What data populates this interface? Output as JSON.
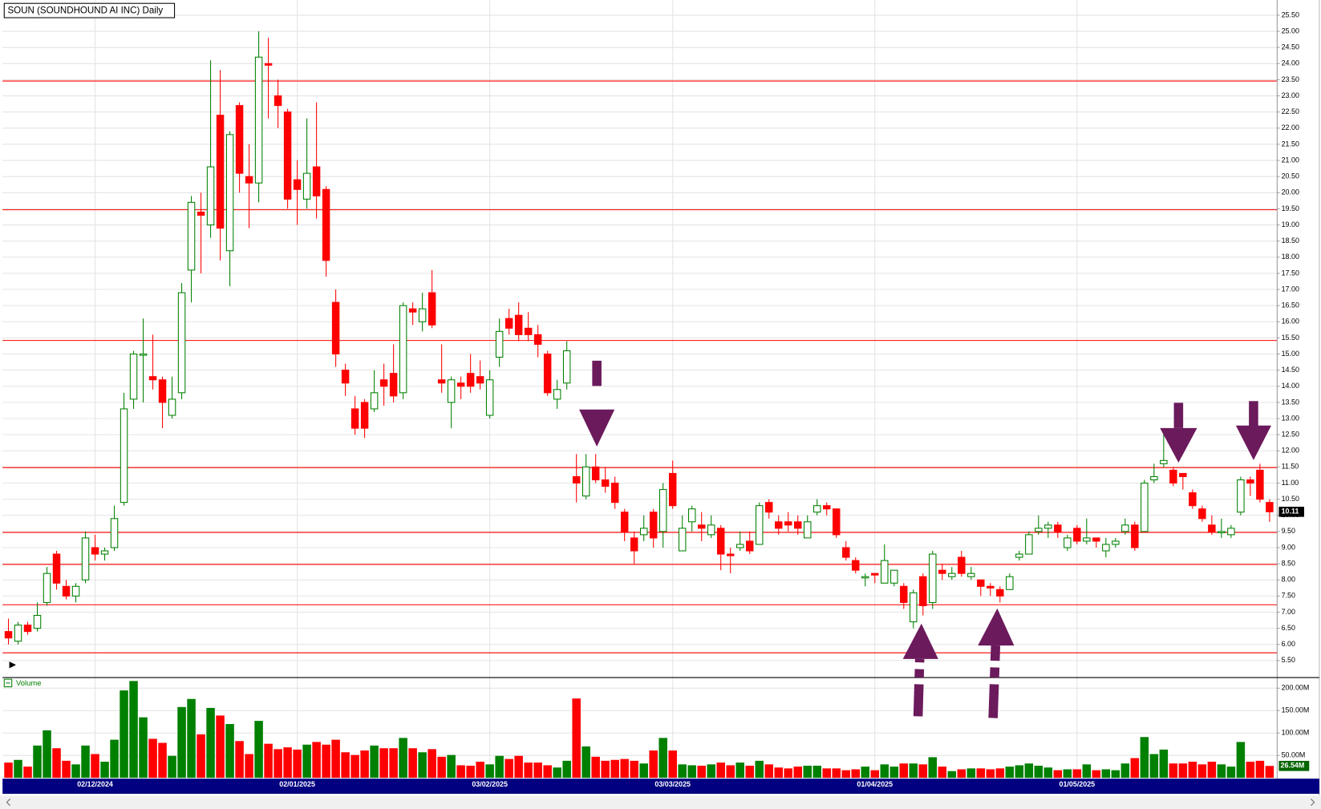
{
  "chart_data": {
    "type": "candlestick",
    "title": "SOUN (SOUNDHOUND AI INC) Daily",
    "volume_label": "Volume",
    "up_color": "#008000",
    "down_color": "#ff0000",
    "hline_color": "#ff0000",
    "grid": true,
    "categories": [
      null,
      null,
      null,
      null,
      null,
      null,
      null,
      null,
      null,
      "02/12/2024",
      null,
      null,
      null,
      null,
      null,
      null,
      null,
      null,
      null,
      null,
      null,
      null,
      null,
      null,
      null,
      null,
      null,
      null,
      null,
      null,
      "02/01/2025",
      null,
      null,
      null,
      null,
      null,
      null,
      null,
      null,
      null,
      null,
      null,
      null,
      null,
      null,
      null,
      null,
      null,
      null,
      null,
      "03/02/2025",
      null,
      null,
      null,
      null,
      null,
      null,
      null,
      null,
      null,
      null,
      null,
      null,
      null,
      null,
      null,
      null,
      null,
      null,
      "03/03/2025",
      null,
      null,
      null,
      null,
      null,
      null,
      null,
      null,
      null,
      null,
      null,
      null,
      null,
      null,
      null,
      null,
      null,
      null,
      null,
      null,
      "01/04/2025",
      null,
      null,
      null,
      null,
      null,
      null,
      null,
      null,
      null,
      null,
      null,
      null,
      null,
      null,
      null,
      null,
      null,
      null,
      null,
      null,
      "01/05/2025",
      null,
      null,
      null,
      null,
      null,
      null,
      null,
      null,
      null,
      null,
      null,
      null,
      null,
      null,
      null,
      null,
      null,
      null,
      null,
      null
    ],
    "open": [
      6.4,
      6.1,
      6.6,
      6.5,
      7.3,
      8.8,
      7.8,
      7.5,
      8.0,
      9.0,
      8.8,
      9.0,
      10.4,
      13.6,
      15.0,
      14.3,
      14.2,
      13.1,
      13.8,
      17.6,
      19.4,
      19.0,
      22.4,
      18.2,
      22.7,
      20.5,
      20.3,
      24.0,
      23.0,
      22.5,
      20.4,
      19.8,
      20.8,
      20.1,
      16.6,
      14.5,
      13.3,
      13.5,
      13.3,
      14.2,
      14.4,
      13.8,
      16.4,
      16.0,
      16.9,
      14.2,
      13.5,
      14.1,
      14.4,
      14.3,
      13.1,
      14.9,
      16.1,
      16.2,
      15.8,
      15.6,
      15.0,
      13.6,
      14.1,
      11.2,
      10.6,
      11.5,
      11.1,
      11.0,
      10.1,
      9.3,
      9.4,
      10.1,
      9.5,
      11.3,
      8.9,
      9.8,
      9.7,
      9.4,
      9.6,
      8.8,
      9.0,
      9.2,
      9.1,
      10.4,
      9.8,
      9.8,
      9.8,
      9.3,
      10.1,
      10.3,
      10.2,
      9.0,
      8.6,
      8.1,
      8.2,
      7.9,
      7.9,
      7.8,
      6.7,
      8.1,
      7.3,
      8.3,
      8.1,
      8.7,
      8.1,
      8.0,
      7.8,
      7.7,
      7.7,
      8.7,
      8.8,
      9.5,
      9.6,
      9.7,
      9.0,
      9.6,
      9.2,
      9.3,
      8.9,
      9.1,
      9.5,
      9.7,
      9.5,
      11.1,
      11.6,
      11.4,
      11.3,
      10.7,
      10.2,
      9.7,
      9.5,
      9.4,
      10.1,
      11.1,
      11.4,
      10.4
    ],
    "high": [
      6.8,
      6.7,
      6.7,
      7.3,
      8.4,
      8.9,
      8.0,
      7.9,
      9.5,
      9.4,
      9.0,
      10.3,
      13.8,
      15.1,
      16.1,
      15.6,
      14.3,
      14.3,
      17.2,
      19.9,
      20.0,
      24.1,
      23.8,
      21.9,
      22.8,
      21.5,
      25.0,
      24.8,
      23.5,
      22.6,
      21.0,
      22.3,
      22.8,
      20.2,
      17.0,
      14.7,
      13.7,
      13.6,
      14.5,
      14.7,
      15.3,
      16.6,
      16.6,
      16.9,
      17.6,
      15.3,
      14.3,
      14.3,
      15.0,
      14.8,
      14.5,
      16.1,
      16.4,
      16.6,
      16.3,
      15.9,
      15.1,
      14.2,
      15.4,
      11.9,
      11.9,
      11.9,
      11.5,
      11.2,
      10.2,
      9.5,
      10.0,
      10.2,
      11.0,
      11.7,
      10.0,
      10.3,
      10.1,
      10.0,
      9.7,
      9.0,
      9.5,
      9.5,
      10.4,
      10.5,
      10.0,
      10.1,
      10.0,
      10.0,
      10.5,
      10.4,
      10.2,
      9.2,
      8.7,
      8.2,
      8.2,
      9.1,
      8.3,
      7.9,
      7.7,
      8.2,
      8.9,
      8.5,
      8.4,
      8.9,
      8.4,
      8.0,
      7.9,
      7.8,
      8.2,
      8.9,
      9.5,
      10.0,
      9.8,
      9.8,
      9.4,
      9.7,
      9.9,
      9.3,
      9.3,
      9.3,
      9.9,
      9.8,
      11.1,
      11.6,
      12.6,
      11.5,
      11.3,
      10.8,
      10.3,
      10.0,
      9.9,
      9.7,
      11.2,
      11.2,
      11.6,
      10.5
    ],
    "low": [
      6.0,
      6.0,
      6.3,
      6.4,
      7.2,
      7.7,
      7.4,
      7.3,
      7.9,
      8.6,
      8.6,
      8.9,
      10.3,
      13.3,
      13.5,
      13.9,
      12.7,
      13.0,
      13.6,
      16.6,
      17.5,
      18.6,
      17.9,
      17.1,
      20.0,
      18.9,
      19.7,
      22.3,
      22.0,
      19.5,
      19.0,
      19.5,
      19.2,
      17.4,
      14.6,
      13.7,
      12.5,
      12.4,
      13.2,
      13.4,
      13.5,
      13.6,
      15.9,
      15.7,
      15.8,
      13.8,
      12.7,
      13.6,
      13.8,
      13.9,
      13.0,
      14.6,
      15.6,
      15.4,
      15.4,
      14.9,
      13.7,
      13.3,
      13.9,
      10.4,
      10.5,
      11.0,
      10.7,
      10.2,
      9.2,
      8.5,
      9.2,
      9.0,
      9.0,
      10.2,
      8.9,
      9.5,
      9.2,
      9.3,
      8.3,
      8.2,
      8.9,
      8.8,
      9.1,
      9.9,
      9.4,
      9.5,
      9.4,
      9.3,
      10.0,
      10.0,
      9.3,
      8.6,
      8.2,
      7.8,
      7.9,
      7.9,
      7.8,
      7.1,
      6.5,
      6.9,
      7.1,
      8.0,
      8.0,
      8.1,
      8.0,
      7.5,
      7.5,
      7.3,
      7.7,
      8.6,
      8.8,
      9.4,
      9.3,
      9.3,
      8.9,
      9.1,
      9.1,
      9.0,
      8.7,
      9.0,
      9.4,
      8.9,
      9.5,
      11.0,
      11.5,
      10.9,
      10.8,
      10.2,
      9.8,
      9.4,
      9.3,
      9.3,
      10.0,
      10.6,
      10.4,
      9.8
    ],
    "close": [
      6.2,
      6.6,
      6.4,
      6.9,
      8.2,
      7.9,
      7.5,
      7.8,
      9.3,
      8.8,
      8.9,
      9.9,
      13.3,
      15.0,
      15.0,
      14.2,
      13.5,
      13.6,
      16.9,
      19.7,
      19.3,
      20.8,
      18.9,
      21.8,
      20.6,
      20.3,
      24.2,
      23.95,
      22.7,
      19.8,
      20.1,
      20.6,
      19.9,
      17.9,
      15.0,
      14.1,
      12.7,
      12.7,
      13.8,
      14.0,
      13.7,
      16.5,
      16.3,
      16.4,
      15.9,
      14.1,
      14.2,
      14.0,
      14.0,
      14.1,
      14.2,
      15.7,
      15.8,
      15.6,
      15.6,
      15.3,
      13.8,
      13.9,
      15.1,
      11.0,
      11.5,
      11.1,
      10.9,
      10.4,
      9.5,
      8.9,
      9.6,
      9.3,
      10.8,
      10.3,
      9.6,
      10.2,
      9.6,
      9.7,
      8.8,
      8.75,
      9.1,
      8.9,
      10.3,
      10.1,
      9.6,
      9.7,
      9.6,
      9.8,
      10.3,
      10.2,
      9.4,
      8.7,
      8.3,
      8.1,
      8.15,
      8.6,
      8.3,
      7.3,
      7.6,
      7.2,
      8.8,
      8.2,
      8.2,
      8.2,
      8.2,
      7.8,
      7.75,
      7.5,
      8.1,
      8.8,
      9.4,
      9.6,
      9.7,
      9.5,
      9.3,
      9.2,
      9.3,
      9.2,
      9.1,
      9.2,
      9.7,
      9.0,
      11.0,
      11.2,
      11.7,
      11.0,
      11.2,
      10.3,
      9.9,
      9.5,
      9.5,
      9.6,
      11.1,
      11.0,
      10.5,
      10.11
    ],
    "volume": [
      34,
      40,
      25,
      72,
      106,
      66,
      38,
      30,
      72,
      53,
      36,
      85,
      195,
      216,
      135,
      87,
      78,
      49,
      158,
      176,
      97,
      156,
      139,
      120,
      82,
      53,
      127,
      76,
      64,
      68,
      63,
      74,
      80,
      74,
      85,
      57,
      51,
      61,
      72,
      66,
      66,
      89,
      66,
      57,
      64,
      47,
      51,
      28,
      27,
      36,
      30,
      49,
      42,
      49,
      34,
      34,
      28,
      23,
      38,
      177,
      70,
      47,
      38,
      40,
      42,
      38,
      32,
      61,
      89,
      61,
      30,
      28,
      27,
      30,
      34,
      28,
      34,
      27,
      38,
      30,
      23,
      21,
      25,
      27,
      27,
      21,
      21,
      17,
      19,
      25,
      17,
      30,
      25,
      32,
      32,
      30,
      46,
      25,
      15,
      19,
      21,
      21,
      19,
      21,
      25,
      28,
      32,
      27,
      23,
      17,
      19,
      19,
      30,
      17,
      19,
      17,
      32,
      44,
      91,
      53,
      63,
      32,
      32,
      36,
      30,
      36,
      30,
      25,
      80,
      36,
      38,
      26.54
    ],
    "hlines": [
      23.46,
      19.47,
      15.42,
      11.48,
      9.47,
      8.48,
      7.23,
      5.74
    ],
    "last_price": 10.11,
    "last_volume": {
      "value": 26.54,
      "label": "26.54M"
    },
    "ylim": [
      5.0,
      25.84
    ],
    "yticks": [
      {
        "value": 5.5,
        "label": "5.50"
      },
      {
        "value": 6,
        "label": "6.00"
      },
      {
        "value": 6.5,
        "label": "6.50"
      },
      {
        "value": 7,
        "label": "7.00"
      },
      {
        "value": 7.5,
        "label": "7.50"
      },
      {
        "value": 8,
        "label": "8.00"
      },
      {
        "value": 8.5,
        "label": "8.50"
      },
      {
        "value": 9,
        "label": "9.00"
      },
      {
        "value": 9.5,
        "label": "9.50"
      },
      {
        "value": 10,
        "label": "10.00"
      },
      {
        "value": 10.5,
        "label": "10.50"
      },
      {
        "value": 11,
        "label": "11.00"
      },
      {
        "value": 11.5,
        "label": "11.50"
      },
      {
        "value": 12,
        "label": "12.00"
      },
      {
        "value": 12.5,
        "label": "12.50"
      },
      {
        "value": 13,
        "label": "13.00"
      },
      {
        "value": 13.5,
        "label": "13.50"
      },
      {
        "value": 14,
        "label": "14.00"
      },
      {
        "value": 14.5,
        "label": "14.50"
      },
      {
        "value": 15,
        "label": "15.00"
      },
      {
        "value": 15.5,
        "label": "15.50"
      },
      {
        "value": 16,
        "label": "16.00"
      },
      {
        "value": 16.5,
        "label": "16.50"
      },
      {
        "value": 17,
        "label": "17.00"
      },
      {
        "value": 17.5,
        "label": "17.50"
      },
      {
        "value": 18,
        "label": "18.00"
      },
      {
        "value": 18.5,
        "label": "18.50"
      },
      {
        "value": 19,
        "label": "19.00"
      },
      {
        "value": 19.5,
        "label": "19.50"
      },
      {
        "value": 20,
        "label": "20.00"
      },
      {
        "value": 20.5,
        "label": "20.50"
      },
      {
        "value": 21,
        "label": "21.00"
      },
      {
        "value": 21.5,
        "label": "21.50"
      },
      {
        "value": 22,
        "label": "22.00"
      },
      {
        "value": 22.5,
        "label": "22.50"
      },
      {
        "value": 23,
        "label": "23.00"
      },
      {
        "value": 23.5,
        "label": "23.50"
      },
      {
        "value": 24,
        "label": "24.00"
      },
      {
        "value": 24.5,
        "label": "24.50"
      },
      {
        "value": 25,
        "label": "25.00"
      },
      {
        "value": 25.5,
        "label": "25.50"
      }
    ],
    "vlim": [
      0,
      220
    ],
    "vticks": [
      {
        "value": 50,
        "label": "50.00M"
      },
      {
        "value": 100,
        "label": "100.00M"
      },
      {
        "value": 150,
        "label": "150.00M"
      },
      {
        "value": 200,
        "label": "200.00M"
      }
    ]
  }
}
